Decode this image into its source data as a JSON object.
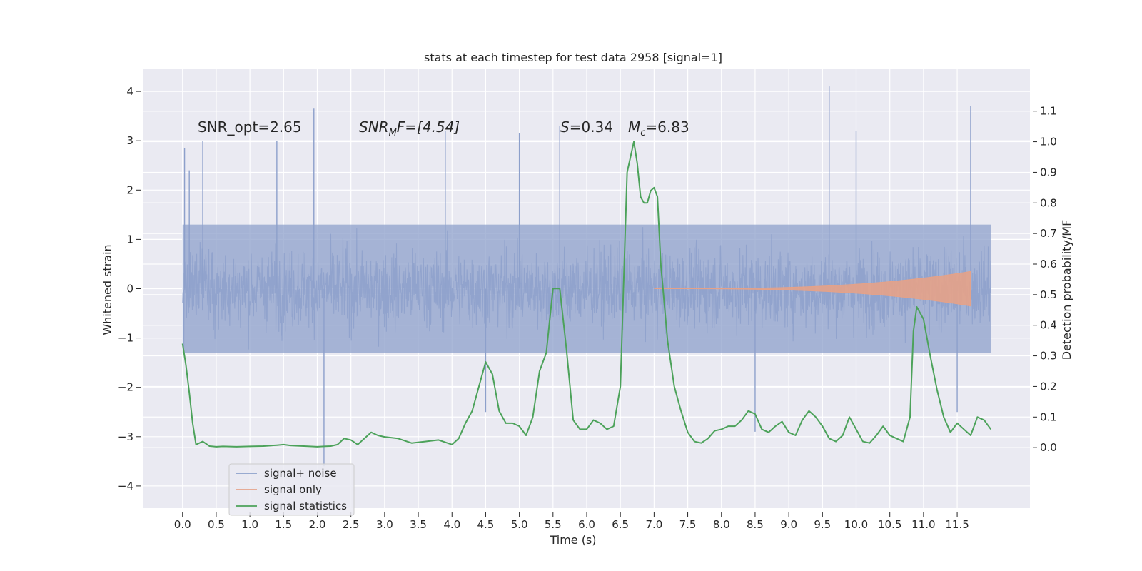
{
  "chart_data": {
    "type": "line",
    "title": "stats at each timestep for test data 2958 [signal=1]",
    "xlabel": "Time (s)",
    "ylabel_left": "Whitened strain",
    "ylabel_right": "Detection probability/MF",
    "xlim": [
      -0.58,
      12.58
    ],
    "ylim_left": [
      -4.45,
      4.45
    ],
    "ylim_right": [
      -0.198,
      1.237
    ],
    "xticks": [
      "0.0",
      "0.5",
      "1.0",
      "1.5",
      "2.0",
      "2.5",
      "3.0",
      "3.5",
      "4.0",
      "4.5",
      "5.0",
      "5.5",
      "6.0",
      "6.5",
      "7.0",
      "7.5",
      "8.0",
      "8.5",
      "9.0",
      "9.5",
      "10.0",
      "10.5",
      "11.0",
      "11.5"
    ],
    "yticks_left": [
      "−4",
      "−3",
      "−2",
      "−1",
      "0",
      "1",
      "2",
      "3",
      "4"
    ],
    "yticks_right": [
      "0.0",
      "0.1",
      "0.2",
      "0.3",
      "0.4",
      "0.5",
      "0.6",
      "0.7",
      "0.8",
      "0.9",
      "1.0",
      "1.1"
    ],
    "grid": true,
    "legend_position": "lower-left",
    "annotations": {
      "snr_opt": "SNR_opt=2.65",
      "snr_mf_main": "SNR",
      "snr_mf_sub": "M",
      "snr_mf_tail": "F=[4.54]",
      "s_main": "S",
      "s_tail": "=0.34",
      "mc_main": "M",
      "mc_sub": "c",
      "mc_tail": "=6.83"
    },
    "series": [
      {
        "name": "signal+ noise",
        "color": "#8da0cb",
        "axis": "left",
        "kind": "noise-band",
        "x_range": [
          0.0,
          12.0
        ],
        "typical_envelope": [
          -1.3,
          1.3
        ],
        "peaks": [
          [
            0.03,
            2.85
          ],
          [
            0.1,
            2.4
          ],
          [
            0.3,
            3.0
          ],
          [
            1.4,
            3.0
          ],
          [
            1.95,
            3.65
          ],
          [
            3.9,
            3.2
          ],
          [
            5.0,
            3.15
          ],
          [
            5.6,
            3.3
          ],
          [
            9.6,
            4.1
          ],
          [
            10.0,
            3.2
          ],
          [
            11.7,
            3.7
          ],
          [
            2.1,
            -3.6
          ],
          [
            4.5,
            -2.5
          ],
          [
            8.5,
            -2.9
          ],
          [
            11.5,
            -2.5
          ]
        ]
      },
      {
        "name": "signal only",
        "color": "#e5a288",
        "axis": "left",
        "kind": "chirp",
        "x_range": [
          7.0,
          11.7
        ],
        "max_amplitude": 0.35
      },
      {
        "name": "signal statistics",
        "color": "#4ca25a",
        "axis": "right",
        "x": [
          0.0,
          0.05,
          0.1,
          0.15,
          0.2,
          0.3,
          0.4,
          0.5,
          0.6,
          0.8,
          1.0,
          1.2,
          1.4,
          1.5,
          1.6,
          1.8,
          2.0,
          2.1,
          2.2,
          2.3,
          2.4,
          2.5,
          2.6,
          2.7,
          2.8,
          2.9,
          3.0,
          3.2,
          3.4,
          3.6,
          3.8,
          4.0,
          4.1,
          4.2,
          4.3,
          4.4,
          4.5,
          4.6,
          4.7,
          4.8,
          4.9,
          5.0,
          5.1,
          5.2,
          5.3,
          5.4,
          5.5,
          5.6,
          5.7,
          5.8,
          5.9,
          6.0,
          6.1,
          6.2,
          6.3,
          6.4,
          6.5,
          6.6,
          6.65,
          6.7,
          6.75,
          6.8,
          6.85,
          6.9,
          6.95,
          7.0,
          7.05,
          7.1,
          7.2,
          7.3,
          7.4,
          7.5,
          7.6,
          7.7,
          7.8,
          7.9,
          8.0,
          8.1,
          8.2,
          8.3,
          8.4,
          8.5,
          8.6,
          8.7,
          8.8,
          8.9,
          9.0,
          9.1,
          9.2,
          9.3,
          9.4,
          9.5,
          9.6,
          9.7,
          9.8,
          9.9,
          10.0,
          10.1,
          10.2,
          10.3,
          10.4,
          10.5,
          10.6,
          10.7,
          10.8,
          10.85,
          10.9,
          11.0,
          11.1,
          11.2,
          11.3,
          11.4,
          11.5,
          11.6,
          11.7,
          11.8,
          11.9,
          12.0
        ],
        "values": [
          0.34,
          0.27,
          0.18,
          0.08,
          0.01,
          0.02,
          0.005,
          0.003,
          0.004,
          0.003,
          0.004,
          0.005,
          0.008,
          0.01,
          0.007,
          0.005,
          0.003,
          0.004,
          0.005,
          0.01,
          0.03,
          0.025,
          0.01,
          0.03,
          0.05,
          0.04,
          0.035,
          0.03,
          0.015,
          0.02,
          0.025,
          0.01,
          0.03,
          0.08,
          0.12,
          0.2,
          0.28,
          0.24,
          0.12,
          0.08,
          0.08,
          0.07,
          0.04,
          0.1,
          0.25,
          0.31,
          0.52,
          0.52,
          0.32,
          0.09,
          0.06,
          0.06,
          0.09,
          0.08,
          0.06,
          0.07,
          0.2,
          0.9,
          0.95,
          1.0,
          0.93,
          0.82,
          0.8,
          0.8,
          0.84,
          0.85,
          0.82,
          0.6,
          0.35,
          0.2,
          0.12,
          0.05,
          0.02,
          0.015,
          0.03,
          0.055,
          0.06,
          0.07,
          0.07,
          0.09,
          0.12,
          0.11,
          0.06,
          0.05,
          0.07,
          0.085,
          0.05,
          0.04,
          0.09,
          0.12,
          0.1,
          0.07,
          0.03,
          0.02,
          0.04,
          0.1,
          0.06,
          0.02,
          0.015,
          0.04,
          0.07,
          0.04,
          0.03,
          0.02,
          0.1,
          0.38,
          0.46,
          0.42,
          0.3,
          0.19,
          0.1,
          0.05,
          0.08,
          0.06,
          0.04,
          0.1,
          0.09,
          0.06
        ]
      }
    ]
  }
}
